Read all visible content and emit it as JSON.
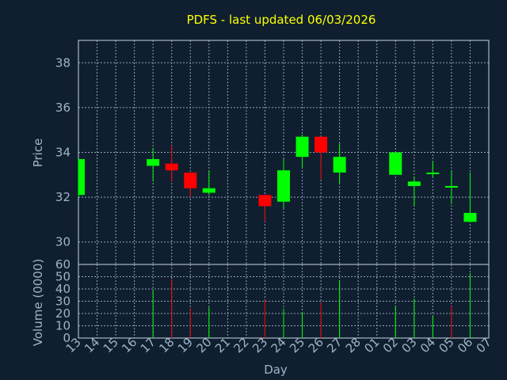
{
  "chart_data": [
    {
      "type": "candlestick",
      "title": "PDFS - last updated 06/03/2026",
      "ylabel": "Price",
      "ylim": [
        29,
        39
      ],
      "y_ticks": [
        30,
        32,
        34,
        36,
        38
      ],
      "grid": true,
      "colors": {
        "up": "#00ff00",
        "down": "#ff0000"
      },
      "candles": [
        {
          "day": "13",
          "open": 32.1,
          "high": 33.7,
          "low": 32.0,
          "close": 33.7
        },
        {
          "day": "17",
          "open": 33.4,
          "high": 34.2,
          "low": 32.7,
          "close": 33.7
        },
        {
          "day": "18",
          "open": 33.5,
          "high": 34.3,
          "low": 32.7,
          "close": 33.2
        },
        {
          "day": "19",
          "open": 33.1,
          "high": 33.1,
          "low": 32.0,
          "close": 32.4
        },
        {
          "day": "20",
          "open": 32.2,
          "high": 33.2,
          "low": 32.1,
          "close": 32.4
        },
        {
          "day": "23",
          "open": 32.1,
          "high": 32.1,
          "low": 30.9,
          "close": 31.6
        },
        {
          "day": "24",
          "open": 31.8,
          "high": 33.7,
          "low": 31.5,
          "close": 33.2
        },
        {
          "day": "25",
          "open": 33.8,
          "high": 34.8,
          "low": 33.3,
          "close": 34.7
        },
        {
          "day": "26",
          "open": 34.7,
          "high": 34.7,
          "low": 32.8,
          "close": 34.0
        },
        {
          "day": "27",
          "open": 33.1,
          "high": 34.4,
          "low": 32.6,
          "close": 33.8
        },
        {
          "day": "02",
          "open": 33.0,
          "high": 34.0,
          "low": 33.0,
          "close": 34.0
        },
        {
          "day": "03",
          "open": 32.5,
          "high": 32.9,
          "low": 31.6,
          "close": 32.7
        },
        {
          "day": "04",
          "open": 33.1,
          "high": 33.6,
          "low": 32.9,
          "close": 33.1
        },
        {
          "day": "05",
          "open": 32.5,
          "high": 33.2,
          "low": 31.7,
          "close": 32.5
        },
        {
          "day": "06",
          "open": 30.9,
          "high": 33.1,
          "low": 30.9,
          "close": 31.3
        }
      ]
    },
    {
      "type": "bar",
      "ylabel": "Volume (0000)",
      "xlabel": "Day",
      "ylim": [
        0,
        60
      ],
      "y_ticks": [
        0,
        10,
        20,
        30,
        40,
        50,
        60
      ],
      "grid": true,
      "categories": [
        "13",
        "14",
        "15",
        "16",
        "17",
        "18",
        "19",
        "20",
        "21",
        "22",
        "23",
        "24",
        "25",
        "26",
        "27",
        "28",
        "01",
        "02",
        "03",
        "04",
        "05",
        "06",
        "07"
      ],
      "volumes": [
        {
          "day": "17",
          "value": 39,
          "direction": "up"
        },
        {
          "day": "18",
          "value": 48,
          "direction": "down"
        },
        {
          "day": "19",
          "value": 24,
          "direction": "down"
        },
        {
          "day": "20",
          "value": 25,
          "direction": "up"
        },
        {
          "day": "23",
          "value": 31,
          "direction": "down"
        },
        {
          "day": "24",
          "value": 24,
          "direction": "up"
        },
        {
          "day": "25",
          "value": 21,
          "direction": "up"
        },
        {
          "day": "26",
          "value": 29,
          "direction": "down"
        },
        {
          "day": "27",
          "value": 47,
          "direction": "up"
        },
        {
          "day": "02",
          "value": 26,
          "direction": "up"
        },
        {
          "day": "03",
          "value": 32,
          "direction": "up"
        },
        {
          "day": "04",
          "value": 18,
          "direction": "up"
        },
        {
          "day": "05",
          "value": 26,
          "direction": "down"
        },
        {
          "day": "06",
          "value": 53,
          "direction": "up"
        }
      ]
    }
  ]
}
